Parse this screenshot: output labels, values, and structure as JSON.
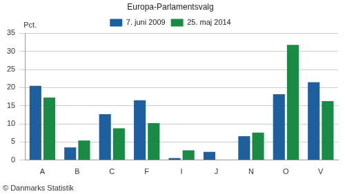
{
  "chart_data": {
    "type": "bar",
    "title": "Europa-Parlamentsvalg",
    "y_label": "Pct.",
    "source": "© Danmarks Statistik",
    "categories": [
      "A",
      "B",
      "C",
      "F",
      "I",
      "J",
      "N",
      "O",
      "V"
    ],
    "series": [
      {
        "name": "7. juni 2009",
        "color": "#1f5f9e",
        "values": [
          20.5,
          3.5,
          12.7,
          16.5,
          0.6,
          2.3,
          6.6,
          18.2,
          21.5
        ]
      },
      {
        "name": "25. maj 2014",
        "color": "#1b8a45",
        "values": [
          17.3,
          5.4,
          8.8,
          10.2,
          2.7,
          null,
          7.6,
          31.8,
          16.3
        ]
      }
    ],
    "ylim": [
      0,
      35
    ],
    "yticks": [
      0,
      5,
      10,
      15,
      20,
      25,
      30,
      35
    ],
    "grid": true,
    "legend": "top"
  }
}
